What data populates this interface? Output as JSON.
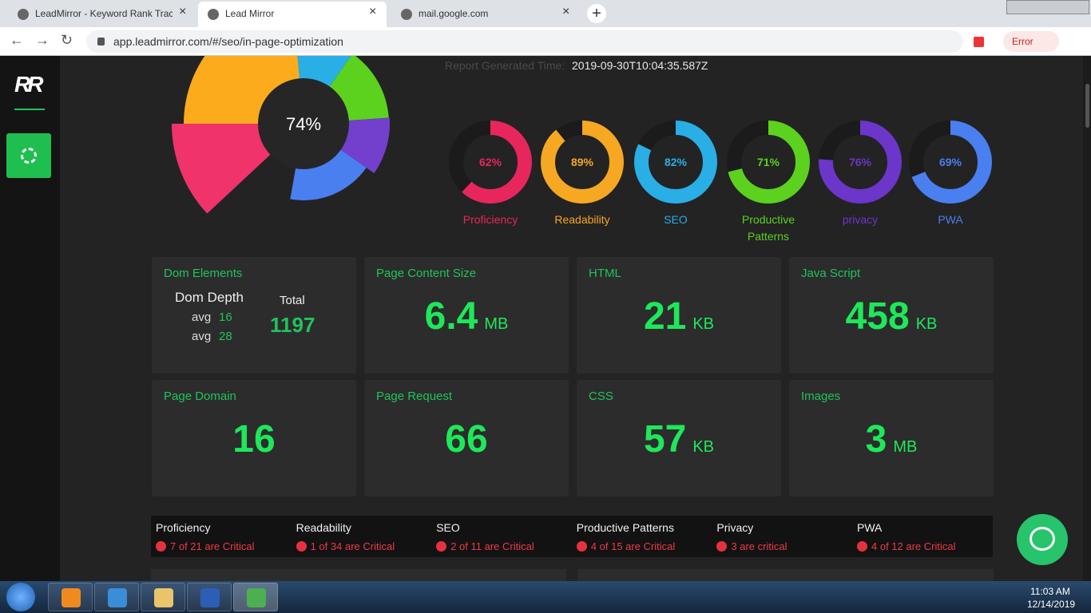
{
  "browser": {
    "tabs": [
      "LeadMirror - Keyword Rank Track",
      "Lead Mirror",
      "mail.google.com"
    ],
    "url": "app.leadmirror.com/#/seo/in-page-optimization",
    "status": "Error"
  },
  "sidebar": {
    "logo": "RR"
  },
  "report": {
    "label": "Report Generated Time:",
    "time": "2019-09-30T10:04:35.587Z"
  },
  "overall": {
    "label": "74%"
  },
  "scores": [
    {
      "name": "Proficiency",
      "value": 62,
      "label": "62%",
      "color": "#e8265e"
    },
    {
      "name": "Readability",
      "value": 89,
      "label": "89%",
      "color": "#f7a823"
    },
    {
      "name": "SEO",
      "value": 82,
      "label": "82%",
      "color": "#2aaee6"
    },
    {
      "name": "Productive Patterns",
      "value": 71,
      "label": "71%",
      "color": "#5cd11e"
    },
    {
      "name": "privacy",
      "value": 76,
      "label": "76%",
      "color": "#6b36c9"
    },
    {
      "name": "PWA",
      "value": 69,
      "label": "69%",
      "color": "#4a7ff0"
    }
  ],
  "dom": {
    "title": "Dom Elements",
    "depth_label": "Dom Depth",
    "rows": [
      {
        "label": "avg",
        "value": 16
      },
      {
        "label": "avg",
        "value": 28
      }
    ],
    "total_label": "Total",
    "total": 1197
  },
  "metrics": [
    {
      "title": "Page Content Size",
      "value": 6.4,
      "unit": "MB"
    },
    {
      "title": "HTML",
      "value": 21,
      "unit": "KB"
    },
    {
      "title": "Java Script",
      "value": 458,
      "unit": "KB"
    },
    {
      "title": "Page Domain",
      "value": 16
    },
    {
      "title": "Page Request",
      "value": 66
    },
    {
      "title": "CSS",
      "value": 57,
      "unit": "KB"
    },
    {
      "title": "Images",
      "value": 3,
      "unit": "MB"
    }
  ],
  "critical": [
    {
      "name": "Proficiency",
      "note": "7 of 21 are Critical"
    },
    {
      "name": "Readability",
      "note": "1 of 34 are Critical"
    },
    {
      "name": "SEO",
      "note": "2 of 11 are Critical"
    },
    {
      "name": "Productive Patterns",
      "note": "4 of 15 are Critical"
    },
    {
      "name": "Privacy",
      "note": "3 are critical"
    },
    {
      "name": "PWA",
      "note": "4 of 12 are Critical"
    }
  ],
  "taskbar": {
    "time": "11:03 AM",
    "date": "12/14/2019"
  }
}
